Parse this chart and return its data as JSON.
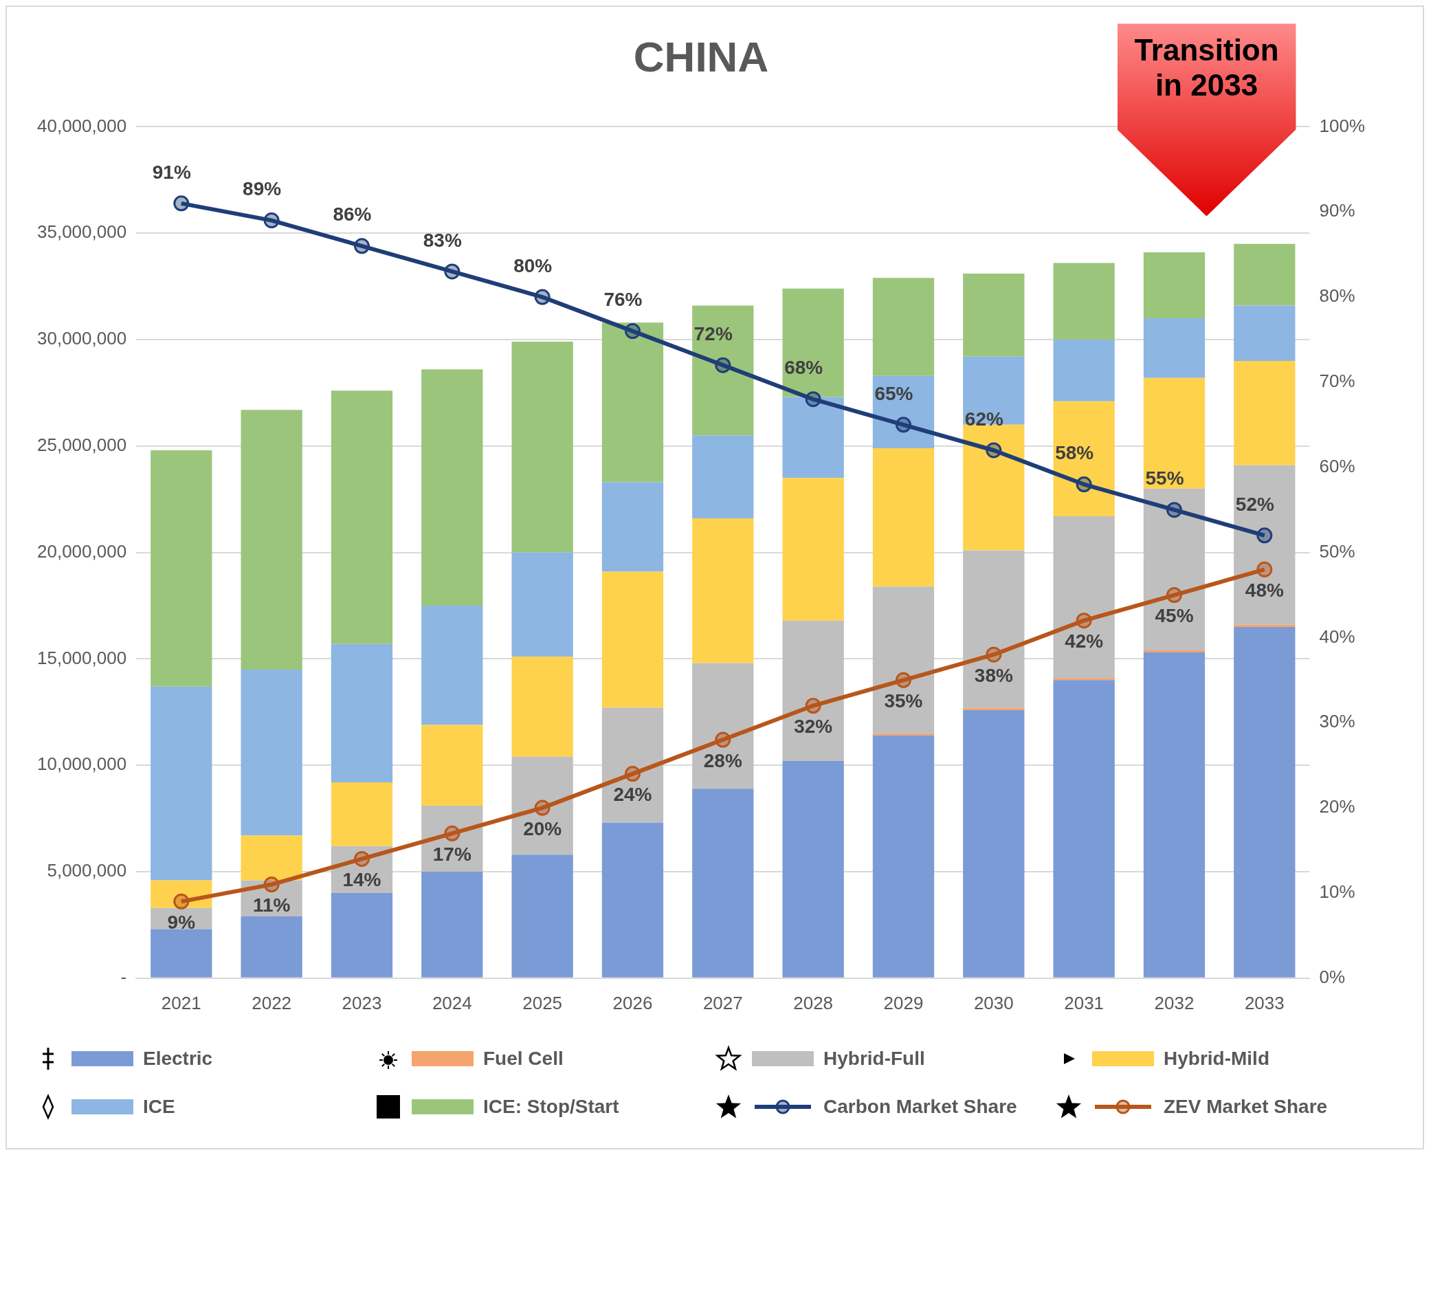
{
  "chart_data": {
    "type": "bar",
    "title": "CHINA",
    "stacked": true,
    "categories": [
      "2021",
      "2022",
      "2023",
      "2024",
      "2025",
      "2026",
      "2027",
      "2028",
      "2029",
      "2030",
      "2031",
      "2032",
      "2033"
    ],
    "series": [
      {
        "name": "Electric",
        "color": "#7b9bd6",
        "values": [
          2300000,
          2900000,
          4000000,
          5000000,
          5800000,
          7300000,
          8900000,
          10200000,
          11400000,
          12600000,
          14000000,
          15300000,
          16500000
        ]
      },
      {
        "name": "Fuel Cell",
        "color": "#f4a46c",
        "values": [
          0,
          0,
          0,
          0,
          0,
          0,
          0,
          0,
          100000,
          100000,
          100000,
          100000,
          100000
        ]
      },
      {
        "name": "Hybrid-Full",
        "color": "#bfbfbf",
        "values": [
          1000000,
          1700000,
          2200000,
          3100000,
          4600000,
          5400000,
          5900000,
          6600000,
          6900000,
          7400000,
          7600000,
          7600000,
          7500000
        ]
      },
      {
        "name": "Hybrid-Mild",
        "color": "#ffd24d",
        "values": [
          1300000,
          2100000,
          3000000,
          3800000,
          4700000,
          6400000,
          6800000,
          6700000,
          6500000,
          5900000,
          5400000,
          5200000,
          4900000
        ]
      },
      {
        "name": "ICE",
        "color": "#8db6e2",
        "values": [
          9100000,
          7800000,
          6500000,
          5600000,
          4900000,
          4200000,
          3900000,
          3800000,
          3400000,
          3200000,
          2900000,
          2800000,
          2600000
        ]
      },
      {
        "name": "ICE: Stop/Start",
        "color": "#9cc57c",
        "values": [
          11100000,
          12200000,
          11900000,
          11100000,
          9900000,
          7500000,
          6100000,
          5100000,
          4600000,
          3900000,
          3600000,
          3100000,
          2900000
        ]
      },
      {
        "name": "Carbon Market Share",
        "type": "line",
        "axis": "y2",
        "color": "#1f3e78",
        "values": [
          91,
          89,
          86,
          83,
          80,
          76,
          72,
          68,
          65,
          62,
          58,
          55,
          52
        ],
        "value_labels": [
          "91%",
          "89%",
          "86%",
          "83%",
          "80%",
          "76%",
          "72%",
          "68%",
          "65%",
          "62%",
          "58%",
          "55%",
          "52%"
        ]
      },
      {
        "name": "ZEV Market Share",
        "type": "line",
        "axis": "y2",
        "color": "#b8561b",
        "values": [
          9,
          11,
          14,
          17,
          20,
          24,
          28,
          32,
          35,
          38,
          42,
          45,
          48
        ],
        "value_labels": [
          "9%",
          "11%",
          "14%",
          "17%",
          "20%",
          "24%",
          "28%",
          "32%",
          "35%",
          "38%",
          "42%",
          "45%",
          "48%"
        ]
      }
    ],
    "ylim": [
      0,
      40000000
    ],
    "yticks": [
      {
        "value": 0,
        "label": "-"
      },
      {
        "value": 5000000,
        "label": "5,000,000"
      },
      {
        "value": 10000000,
        "label": "10,000,000"
      },
      {
        "value": 15000000,
        "label": "15,000,000"
      },
      {
        "value": 20000000,
        "label": "20,000,000"
      },
      {
        "value": 25000000,
        "label": "25,000,000"
      },
      {
        "value": 30000000,
        "label": "30,000,000"
      },
      {
        "value": 35000000,
        "label": "35,000,000"
      },
      {
        "value": 40000000,
        "label": "40,000,000"
      }
    ],
    "y2lim": [
      0,
      100
    ],
    "y2ticks": [
      {
        "value": 0,
        "label": "0%"
      },
      {
        "value": 10,
        "label": "10%"
      },
      {
        "value": 20,
        "label": "20%"
      },
      {
        "value": 30,
        "label": "30%"
      },
      {
        "value": 40,
        "label": "40%"
      },
      {
        "value": 50,
        "label": "50%"
      },
      {
        "value": 60,
        "label": "60%"
      },
      {
        "value": 70,
        "label": "70%"
      },
      {
        "value": 80,
        "label": "80%"
      },
      {
        "value": 90,
        "label": "90%"
      },
      {
        "value": 100,
        "label": "100%"
      }
    ],
    "grid": "y",
    "legend": "bottom",
    "marker": "circle",
    "line_style": "solid",
    "annotations": [
      "Transition in 2033"
    ]
  }
}
